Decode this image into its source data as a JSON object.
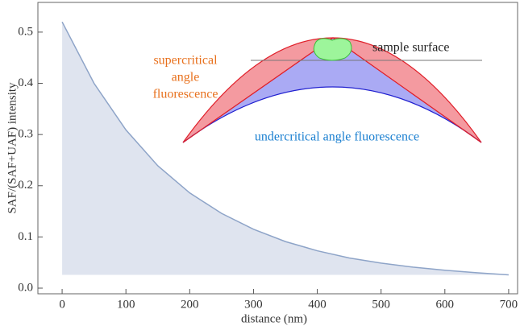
{
  "chart_data": {
    "type": "area",
    "x_label": "distance (nm)",
    "y_label": "SAF/(SAF+UAF) intensity",
    "x": [
      0,
      50,
      100,
      150,
      200,
      250,
      300,
      350,
      400,
      450,
      500,
      550,
      600,
      650,
      700
    ],
    "values": [
      0.52,
      0.4,
      0.309,
      0.239,
      0.186,
      0.146,
      0.115,
      0.091,
      0.073,
      0.059,
      0.049,
      0.041,
      0.035,
      0.03,
      0.026
    ],
    "color": "#8ea4c8",
    "fill": "#dfe4ef",
    "xlim": [
      -38,
      714
    ],
    "ylim": [
      -0.011,
      0.558
    ],
    "xticks": [
      0,
      100,
      200,
      300,
      400,
      500,
      600,
      700
    ],
    "yticks": [
      {
        "value": 0,
        "label": "0.0"
      },
      0.1,
      0.2,
      0.3,
      0.4,
      0.5
    ],
    "annotations": {
      "sample": "sample surface",
      "supercritical": [
        "supercritical",
        "angle",
        "fluorescence"
      ],
      "undercritical": "undercritical angle fluorescence"
    }
  }
}
